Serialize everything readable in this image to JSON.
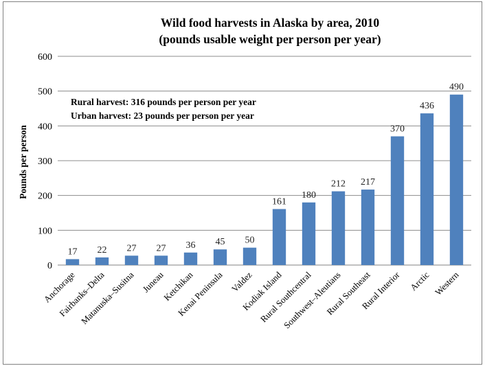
{
  "chart_data": {
    "type": "bar",
    "title": [
      "Wild food harvests in Alaska by area, 2010",
      "(pounds usable weight per person per year)"
    ],
    "xlabel": "",
    "ylabel": "Pounds per person",
    "ylim": [
      0,
      600
    ],
    "yticks": [
      0,
      100,
      200,
      300,
      400,
      500,
      600
    ],
    "grid": true,
    "legend": "none",
    "bar_color": "#4F81BD",
    "categories": [
      "Anchorage",
      "Fairbanks–Delta",
      "Matanuska–Susitna",
      "Juneau",
      "Ketchikan",
      "Kenai Peninsula",
      "Valdez",
      "Kodiak Island",
      "Rural Southcentral",
      "Southwest–Aleutians",
      "Rural Southeast",
      "Rural Interior",
      "Arctic",
      "Western"
    ],
    "values": [
      17,
      22,
      27,
      27,
      36,
      45,
      50,
      161,
      180,
      212,
      217,
      370,
      436,
      490
    ],
    "annotations": [
      "Rural harvest:  316 pounds per person per year",
      "Urban harvest:  23 pounds per person per year"
    ]
  }
}
